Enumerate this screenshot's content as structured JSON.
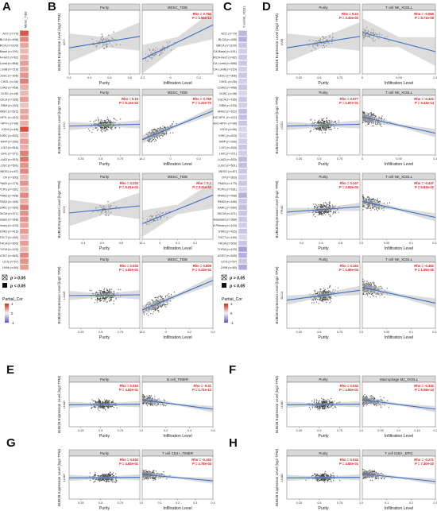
{
  "colors": {
    "point": "#3a3a3a",
    "fit": "#3b6fc4",
    "band": "#bfbfbf",
    "strip": "#d9d9d9",
    "panel_bg": "#ffffff",
    "border": "#666666",
    "stat": "#e41a1c",
    "heat_pos": "#d7301f",
    "heat_neg": "#6b5bc7",
    "heat_mid": "#f4f4f4"
  },
  "legend": {
    "p_gt": "p > 0.05",
    "p_lt": "p < 0.05",
    "title": "Partial_Cor",
    "ticks": [
      "1",
      "0",
      "-1"
    ]
  },
  "strip_labels": {
    "purity": "Purity",
    "mdsc": "MDSC_TIDE",
    "nk": "T cell NK_XCELL",
    "bcell": "B cell_TIMER",
    "m2": "Macrophage M2_XCELL",
    "cd4": "T cell CD4+_TIMER",
    "cd8": "T cell CD8+_EPIC"
  },
  "axis_labels": {
    "y": "BUB1B Expression Level (log2 TPM)",
    "x_purity": "Purity",
    "x_infil": "Infiltration Level"
  },
  "heatmaps": [
    {
      "letter": "A",
      "column_title": "MDSC_TIDE",
      "rows": [
        {
          "name": "ACC (n=79)",
          "value": 0.8
        },
        {
          "name": "BLCA (n=408)",
          "value": 0.55
        },
        {
          "name": "BRCA (n=1100)",
          "value": 0.4
        },
        {
          "name": "BRCA-Basal (n=191)",
          "value": 0.3
        },
        {
          "name": "BRCA-Her2 (n=82)",
          "value": 0.35
        },
        {
          "name": "BRCA-LumA (n=568)",
          "value": 0.45
        },
        {
          "name": "BRCA-LumB (n=219)",
          "value": 0.4
        },
        {
          "name": "CESC (n=306)",
          "value": 0.5
        },
        {
          "name": "CHOL (n=36)",
          "value": 0.6
        },
        {
          "name": "COAD (n=458)",
          "value": 0.35
        },
        {
          "name": "DLBC (n=48)",
          "value": 0.3
        },
        {
          "name": "ESCA (n=185)",
          "value": 0.45
        },
        {
          "name": "GBM (n=153)",
          "value": 0.25
        },
        {
          "name": "HNSC (n=522)",
          "value": 0.4
        },
        {
          "name": "HNSC-HPV- (n=422)",
          "value": 0.4
        },
        {
          "name": "HNSC-HPV+ (n=98)",
          "value": 0.35
        },
        {
          "name": "KICH (n=66)",
          "value": 0.85
        },
        {
          "name": "KIRC (n=533)",
          "value": 0.3
        },
        {
          "name": "KIRP (n=290)",
          "value": 0.45
        },
        {
          "name": "LGG (n=516)",
          "value": 0.35
        },
        {
          "name": "LIHC (n=371)",
          "value": 0.6
        },
        {
          "name": "LUAD (n=515)",
          "value": 0.65
        },
        {
          "name": "LUSC (n=501)",
          "value": 0.5
        },
        {
          "name": "MESO (n=87)",
          "value": 0.55
        },
        {
          "name": "OV (n=303)",
          "value": 0.3
        },
        {
          "name": "PAAD (n=179)",
          "value": 0.5
        },
        {
          "name": "PCPG (n=181)",
          "value": 0.3
        },
        {
          "name": "PRAD (n=498)",
          "value": 0.55
        },
        {
          "name": "READ (n=166)",
          "value": 0.35
        },
        {
          "name": "SARC (n=260)",
          "value": 0.6
        },
        {
          "name": "SKCM (n=471)",
          "value": 0.5
        },
        {
          "name": "SKCM-Metastasis (n=368)",
          "value": 0.5
        },
        {
          "name": "SKCM-Primary (n=103)",
          "value": 0.4
        },
        {
          "name": "STAD (n=415)",
          "value": 0.45
        },
        {
          "name": "TGCT (n=150)",
          "value": 0.3
        },
        {
          "name": "THCA (n=509)",
          "value": 0.45
        },
        {
          "name": "THYM (n=120)",
          "value": 0.3
        },
        {
          "name": "UCEC (n=545)",
          "value": 0.55
        },
        {
          "name": "UCS (n=57)",
          "value": 0.5
        },
        {
          "name": "UVM (n=80)",
          "value": 0.45
        }
      ]
    },
    {
      "letter": "C",
      "column_title": "T cell NK_XCELL",
      "rows": [
        {
          "name": "ACC (n=79)",
          "value": -0.4
        },
        {
          "name": "BLCA (n=408)",
          "value": -0.45
        },
        {
          "name": "BRCA (n=1100)",
          "value": -0.3
        },
        {
          "name": "BRCA-Basal (n=191)",
          "value": -0.25
        },
        {
          "name": "BRCA-Her2 (n=82)",
          "value": -0.3
        },
        {
          "name": "BRCA-LumA (n=568)",
          "value": -0.3
        },
        {
          "name": "BRCA-LumB (n=219)",
          "value": -0.25
        },
        {
          "name": "CESC (n=306)",
          "value": -0.3
        },
        {
          "name": "CHOL (n=36)",
          "value": -0.25
        },
        {
          "name": "COAD (n=458)",
          "value": -0.3
        },
        {
          "name": "DLBC (n=48)",
          "value": -0.2
        },
        {
          "name": "ESCA (n=185)",
          "value": -0.3
        },
        {
          "name": "GBM (n=153)",
          "value": -0.25
        },
        {
          "name": "HNSC (n=522)",
          "value": -0.35
        },
        {
          "name": "HNSC-HPV- (n=422)",
          "value": -0.35
        },
        {
          "name": "HNSC-HPV+ (n=98)",
          "value": -0.3
        },
        {
          "name": "KICH (n=66)",
          "value": -0.2
        },
        {
          "name": "KIRC (n=533)",
          "value": -0.2
        },
        {
          "name": "KIRP (n=290)",
          "value": -0.25
        },
        {
          "name": "LGG (n=516)",
          "value": -0.3
        },
        {
          "name": "LIHC (n=371)",
          "value": -0.25
        },
        {
          "name": "LUAD (n=515)",
          "value": -0.4
        },
        {
          "name": "LUSC (n=501)",
          "value": -0.35
        },
        {
          "name": "MESO (n=87)",
          "value": -0.3
        },
        {
          "name": "OV (n=303)",
          "value": -0.25
        },
        {
          "name": "PAAD (n=179)",
          "value": -0.3
        },
        {
          "name": "PCPG (n=181)",
          "value": -0.2
        },
        {
          "name": "PRAD (n=498)",
          "value": -0.45
        },
        {
          "name": "READ (n=166)",
          "value": -0.3
        },
        {
          "name": "SARC (n=260)",
          "value": -0.35
        },
        {
          "name": "SKCM (n=471)",
          "value": -0.3
        },
        {
          "name": "SKCM-Metastasis (n=368)",
          "value": -0.3
        },
        {
          "name": "SKCM-Primary (n=103)",
          "value": -0.25
        },
        {
          "name": "STAD (n=415)",
          "value": -0.3
        },
        {
          "name": "TGCT (n=150)",
          "value": -0.2
        },
        {
          "name": "THCA (n=509)",
          "value": -0.3
        },
        {
          "name": "THYM (n=120)",
          "value": -0.55
        },
        {
          "name": "UCEC (n=545)",
          "value": -0.45
        },
        {
          "name": "UCS (n=57)",
          "value": -0.3
        },
        {
          "name": "UVM (n=80)",
          "value": -0.5
        }
      ]
    }
  ],
  "panel_letters": [
    "A",
    "B",
    "C",
    "D",
    "E",
    "F",
    "G",
    "H"
  ],
  "chart_data": [
    {
      "panel": "B",
      "row": 1,
      "type": "scatter",
      "cancer": "ACC",
      "facets": [
        {
          "strip": "Purity",
          "xlim": [
            0.2,
            0.9
          ],
          "xticks": [
            0.2,
            0.4,
            0.6,
            0.8
          ],
          "slope": 0.3,
          "n": 79,
          "rho": "",
          "p": ""
        },
        {
          "strip": "MDSC_TIDE",
          "xlim": [
            -0.2,
            0.3
          ],
          "xticks": [
            -0.2,
            0,
            0.2
          ],
          "slope": 0.9,
          "n": 79,
          "rho": "Rho = 0.751",
          "p": "P = 2.94e-14"
        }
      ]
    },
    {
      "panel": "B",
      "row": 2,
      "type": "scatter",
      "cancer": "LIHC",
      "facets": [
        {
          "strip": "Purity",
          "xlim": [
            0.1,
            1.0
          ],
          "xticks": [
            0.25,
            0.5,
            0.75,
            1.0
          ],
          "slope": 0.05,
          "n": 371,
          "rho": "Rho = 0.15",
          "p": "P = 5.13e-03"
        },
        {
          "strip": "MDSC_TIDE",
          "xlim": [
            -0.2,
            0.3
          ],
          "xticks": [
            -0.2,
            0,
            0.2
          ],
          "slope": 0.8,
          "n": 371,
          "rho": "Rho = 0.768",
          "p": "P = 1.22e-70"
        }
      ]
    },
    {
      "panel": "B",
      "row": 3,
      "type": "scatter",
      "cancer": "KICH",
      "facets": [
        {
          "strip": "Purity",
          "xlim": [
            0.25,
            1.0
          ],
          "xticks": [
            0.4,
            0.6,
            0.8,
            1.0
          ],
          "slope": 0.2,
          "n": 66,
          "rho": "Rho = 0.233",
          "p": "P = 6.01e-02"
        },
        {
          "strip": "MDSC_TIDE",
          "xlim": [
            -0.1,
            0.3
          ],
          "xticks": [
            -0.1,
            0,
            0.1,
            0.2
          ],
          "slope": 0.8,
          "n": 66,
          "rho": "Rho = 0.7",
          "p": "P = 3.41e-11"
        }
      ]
    },
    {
      "panel": "B",
      "row": 4,
      "type": "scatter",
      "cancer": "LUAD",
      "facets": [
        {
          "strip": "Purity",
          "xlim": [
            0.1,
            1.0
          ],
          "xticks": [
            0.25,
            0.5,
            0.75,
            1.0
          ],
          "slope": 0.02,
          "n": 515,
          "rho": "Rho = 0.032",
          "p": "P = 4.83e-01"
        },
        {
          "strip": "MDSC_TIDE",
          "xlim": [
            -0.2,
            0.4
          ],
          "xticks": [
            -0.2,
            0,
            0.2,
            0.4
          ],
          "slope": 0.75,
          "n": 515,
          "rho": "Rho = 0.609",
          "p": "P = 5.23e-51"
        }
      ]
    },
    {
      "panel": "D",
      "row": 1,
      "type": "scatter",
      "cancer": "UVM",
      "facets": [
        {
          "strip": "Purity",
          "xlim": [
            0.1,
            1.0
          ],
          "xticks": [
            0.25,
            0.5,
            0.75
          ],
          "slope": 0.3,
          "n": 80,
          "rho": "Rho = 0.24",
          "p": "P = 3.43e-02"
        },
        {
          "strip": "T cell NK_XCELL",
          "xlim": [
            0,
            0.1
          ],
          "xticks": [
            0,
            0.05,
            0.1
          ],
          "slope": -0.5,
          "n": 80,
          "rho": "Rho = -0.565",
          "p": "P = 8.71e-08"
        }
      ]
    },
    {
      "panel": "D",
      "row": 2,
      "type": "scatter",
      "cancer": "UCEC",
      "facets": [
        {
          "strip": "Purity",
          "xlim": [
            0.1,
            1.0
          ],
          "xticks": [
            0.25,
            0.5,
            0.75
          ],
          "slope": 0.05,
          "n": 545,
          "rho": "Rho = 0.077",
          "p": "P = 1.87e-01"
        },
        {
          "strip": "T cell NK_XCELL",
          "xlim": [
            0,
            0.1
          ],
          "xticks": [
            0,
            0.05,
            0.1
          ],
          "slope": -0.45,
          "n": 545,
          "rho": "Rho = -0.421",
          "p": "P = 5.43e-14"
        }
      ]
    },
    {
      "panel": "D",
      "row": 3,
      "type": "scatter",
      "cancer": "PRAD",
      "facets": [
        {
          "strip": "Purity",
          "xlim": [
            0.25,
            1.0
          ],
          "xticks": [
            0.4,
            0.6,
            0.8,
            1.0
          ],
          "slope": 0.15,
          "n": 498,
          "rho": "Rho = 0.147",
          "p": "P = 2.63e-03"
        },
        {
          "strip": "T cell NK_XCELL",
          "xlim": [
            0,
            0.15
          ],
          "xticks": [
            0,
            0.05,
            0.1,
            0.15
          ],
          "slope": -0.45,
          "n": 498,
          "rho": "Rho = -0.447",
          "p": "P = 5.83e-22"
        }
      ]
    },
    {
      "panel": "D",
      "row": 4,
      "type": "scatter",
      "cancer": "BLCA",
      "facets": [
        {
          "strip": "Purity",
          "xlim": [
            0.1,
            1.0
          ],
          "xticks": [
            0.25,
            0.5,
            0.75,
            1.0
          ],
          "slope": 0.25,
          "n": 408,
          "rho": "Rho = 0.163",
          "p": "P = 1.69e-03"
        },
        {
          "strip": "T cell NK_XCELL",
          "xlim": [
            0,
            0.15
          ],
          "xticks": [
            0,
            0.05,
            0.1,
            0.15
          ],
          "slope": -0.4,
          "n": 408,
          "rho": "Rho = -0.462",
          "p": "P = 1.05e-20"
        }
      ]
    },
    {
      "panel": "E",
      "row": 1,
      "type": "scatter",
      "cancer": "LUAD",
      "facets": [
        {
          "strip": "Purity",
          "xlim": [
            0.1,
            1.0
          ],
          "xticks": [
            0.25,
            0.5,
            0.75,
            1.0
          ],
          "slope": 0.02,
          "n": 515,
          "rho": "Rho = 0.032",
          "p": "P = 4.83e-01"
        },
        {
          "strip": "B cell_TIMER",
          "xlim": [
            0,
            0.6
          ],
          "xticks": [
            0,
            0.2,
            0.4,
            0.6
          ],
          "slope": -0.35,
          "n": 515,
          "rho": "Rho = -0.31",
          "p": "P = 1.71e-12"
        }
      ]
    },
    {
      "panel": "F",
      "row": 1,
      "type": "scatter",
      "cancer": "LUAD",
      "facets": [
        {
          "strip": "Purity",
          "xlim": [
            0.1,
            1.0
          ],
          "xticks": [
            0.25,
            0.5,
            0.75,
            1.0
          ],
          "slope": 0.02,
          "n": 515,
          "rho": "Rho = 0.032",
          "p": "P = 4.83e-01"
        },
        {
          "strip": "Macrophage M2_XCELL",
          "xlim": [
            0,
            0.2
          ],
          "xticks": [
            0,
            0.05,
            0.1,
            0.15,
            0.2
          ],
          "slope": -0.35,
          "n": 515,
          "rho": "Rho = -0.332",
          "p": "P = 6.08e-14"
        }
      ]
    },
    {
      "panel": "G",
      "row": 1,
      "type": "scatter",
      "cancer": "LUAD",
      "facets": [
        {
          "strip": "Purity",
          "xlim": [
            0.1,
            1.0
          ],
          "xticks": [
            0.25,
            0.5,
            0.75,
            1.0
          ],
          "slope": 0.02,
          "n": 515,
          "rho": "Rho = 0.032",
          "p": "P = 4.83e-01"
        },
        {
          "strip": "T cell CD4+_TIMER",
          "xlim": [
            0,
            0.4
          ],
          "xticks": [
            0,
            0.1,
            0.2,
            0.3,
            0.4
          ],
          "slope": -0.25,
          "n": 515,
          "rho": "Rho = -0.163",
          "p": "P = 2.78e-04"
        }
      ]
    },
    {
      "panel": "H",
      "row": 1,
      "type": "scatter",
      "cancer": "LUAD",
      "facets": [
        {
          "strip": "Purity",
          "xlim": [
            0.1,
            1.0
          ],
          "xticks": [
            0.25,
            0.5,
            0.75,
            1.0
          ],
          "slope": 0.02,
          "n": 515,
          "rho": "Rho = 0.032",
          "p": "P = 4.83e-01"
        },
        {
          "strip": "T cell CD8+_EPIC",
          "xlim": [
            0,
            0.3
          ],
          "xticks": [
            0,
            0.1,
            0.2,
            0.3
          ],
          "slope": -0.3,
          "n": 515,
          "rho": "Rho = -0.271",
          "p": "P = 7.30e-10"
        }
      ]
    }
  ]
}
